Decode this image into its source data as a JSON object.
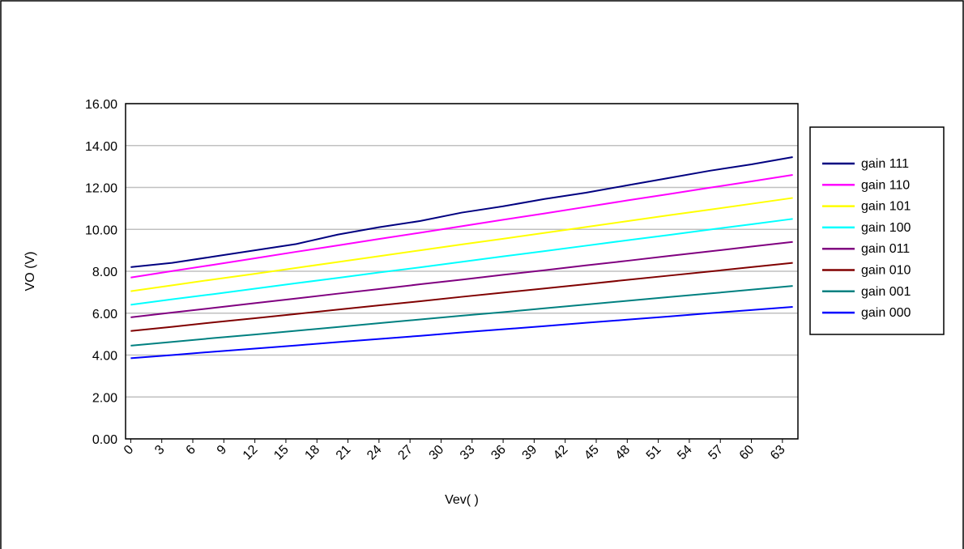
{
  "chart_data": {
    "type": "line",
    "x_label": "Vev(   )",
    "y_label": "VO (V)",
    "x": [
      0,
      4,
      8,
      12,
      16,
      20,
      24,
      28,
      32,
      36,
      40,
      44,
      48,
      52,
      56,
      60,
      64
    ],
    "xlim": [
      -0.5,
      64.5
    ],
    "xticks": [
      0,
      3,
      6,
      9,
      12,
      15,
      18,
      21,
      24,
      27,
      30,
      33,
      36,
      39,
      42,
      45,
      48,
      51,
      54,
      57,
      60,
      63
    ],
    "ylim": [
      0,
      16
    ],
    "yticks": [
      {
        "value": 0,
        "label": "0.00"
      },
      {
        "value": 2,
        "label": "2.00"
      },
      {
        "value": 4,
        "label": "4.00"
      },
      {
        "value": 6,
        "label": "6.00"
      },
      {
        "value": 8,
        "label": "8.00"
      },
      {
        "value": 10,
        "label": "10.00"
      },
      {
        "value": 12,
        "label": "12.00"
      },
      {
        "value": 14,
        "label": "14.00"
      },
      {
        "value": 16,
        "label": "16.00"
      }
    ],
    "grid": true,
    "legend": "right",
    "series": [
      {
        "name": "gain 111",
        "color": "#000080",
        "values": [
          8.2,
          8.4,
          8.7,
          9.0,
          9.3,
          9.75,
          10.1,
          10.4,
          10.8,
          11.1,
          11.45,
          11.75,
          12.1,
          12.45,
          12.8,
          13.1,
          13.45
        ]
      },
      {
        "name": "gain 110",
        "color": "#ff00ff",
        "values": [
          7.7,
          8.01,
          8.31,
          8.62,
          8.93,
          9.23,
          9.54,
          9.84,
          10.15,
          10.46,
          10.76,
          11.07,
          11.38,
          11.68,
          11.99,
          12.29,
          12.6
        ]
      },
      {
        "name": "gain 101",
        "color": "#ffff00",
        "values": [
          7.05,
          7.33,
          7.61,
          7.88,
          8.16,
          8.44,
          8.72,
          9.0,
          9.28,
          9.55,
          9.83,
          10.11,
          10.39,
          10.67,
          10.94,
          11.22,
          11.5
        ]
      },
      {
        "name": "gain 100",
        "color": "#00ffff",
        "values": [
          6.4,
          6.66,
          6.91,
          7.17,
          7.43,
          7.68,
          7.94,
          8.19,
          8.45,
          8.71,
          8.96,
          9.22,
          9.48,
          9.73,
          9.99,
          10.24,
          10.5
        ]
      },
      {
        "name": "gain 011",
        "color": "#800080",
        "values": [
          5.8,
          6.03,
          6.25,
          6.48,
          6.7,
          6.93,
          7.15,
          7.38,
          7.6,
          7.83,
          8.05,
          8.28,
          8.5,
          8.73,
          8.95,
          9.18,
          9.4
        ]
      },
      {
        "name": "gain 010",
        "color": "#800000",
        "values": [
          5.15,
          5.35,
          5.56,
          5.76,
          5.96,
          6.17,
          6.37,
          6.57,
          6.78,
          6.98,
          7.18,
          7.38,
          7.59,
          7.79,
          7.99,
          8.2,
          8.4
        ]
      },
      {
        "name": "gain 001",
        "color": "#008080",
        "values": [
          4.45,
          4.63,
          4.81,
          4.98,
          5.16,
          5.34,
          5.52,
          5.7,
          5.88,
          6.05,
          6.23,
          6.41,
          6.59,
          6.77,
          6.94,
          7.12,
          7.3
        ]
      },
      {
        "name": "gain 000",
        "color": "#0000ff",
        "values": [
          3.85,
          4.0,
          4.16,
          4.31,
          4.46,
          4.62,
          4.77,
          4.92,
          5.08,
          5.23,
          5.38,
          5.54,
          5.69,
          5.84,
          6.0,
          6.15,
          6.3
        ]
      }
    ]
  }
}
